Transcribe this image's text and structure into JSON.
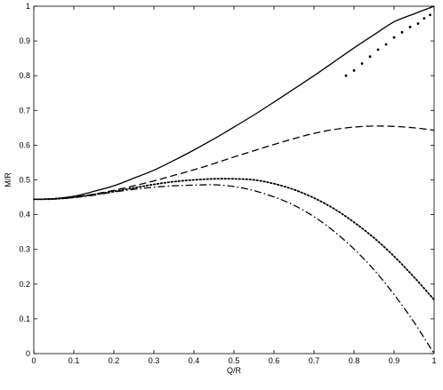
{
  "chart_data": {
    "type": "line",
    "title": "",
    "xlabel": "Q/R",
    "ylabel": "M/R",
    "xlim": [
      0,
      1
    ],
    "ylim": [
      0,
      1
    ],
    "grid": false,
    "legend": "none",
    "x_ticks": [
      "0",
      "0.1",
      "0.2",
      "0.3",
      "0.4",
      "0.5",
      "0.6",
      "0.7",
      "0.8",
      "0.9",
      "1"
    ],
    "y_ticks": [
      "0",
      "0.1",
      "0.2",
      "0.3",
      "0.4",
      "0.5",
      "0.6",
      "0.7",
      "0.8",
      "0.9",
      "1"
    ],
    "x": [
      0,
      0.05,
      0.1,
      0.15,
      0.2,
      0.25,
      0.3,
      0.35,
      0.4,
      0.45,
      0.5,
      0.55,
      0.6,
      0.65,
      0.7,
      0.75,
      0.8,
      0.85,
      0.9,
      0.95,
      1.0
    ],
    "series": [
      {
        "style": "solid",
        "color": "#000000",
        "values": [
          0.444,
          0.446,
          0.453,
          0.467,
          0.483,
          0.505,
          0.528,
          0.556,
          0.586,
          0.618,
          0.652,
          0.687,
          0.724,
          0.762,
          0.8,
          0.84,
          0.88,
          0.918,
          0.955,
          0.978,
          1.0
        ]
      },
      {
        "style": "dashed",
        "color": "#000000",
        "values": [
          0.444,
          0.446,
          0.451,
          0.459,
          0.47,
          0.483,
          0.497,
          0.513,
          0.529,
          0.547,
          0.566,
          0.584,
          0.602,
          0.619,
          0.634,
          0.645,
          0.652,
          0.655,
          0.654,
          0.65,
          0.643
        ]
      },
      {
        "style": "dotted",
        "color": "#000000",
        "values": [
          0.444,
          0.445,
          0.45,
          0.458,
          0.467,
          0.477,
          0.487,
          0.495,
          0.5,
          0.503,
          0.503,
          0.5,
          0.489,
          0.472,
          0.448,
          0.417,
          0.378,
          0.333,
          0.28,
          0.22,
          0.155
        ]
      },
      {
        "style": "dashdot",
        "color": "#000000",
        "values": [
          0.444,
          0.445,
          0.449,
          0.456,
          0.465,
          0.473,
          0.479,
          0.483,
          0.485,
          0.486,
          0.481,
          0.469,
          0.451,
          0.427,
          0.394,
          0.352,
          0.301,
          0.241,
          0.17,
          0.09,
          0.0
        ]
      }
    ],
    "markers": {
      "x": [
        0.78,
        0.8,
        0.82,
        0.84,
        0.86,
        0.88,
        0.9,
        0.92,
        0.94,
        0.96,
        0.975,
        0.99
      ],
      "y": [
        0.8,
        0.815,
        0.835,
        0.855,
        0.875,
        0.89,
        0.91,
        0.925,
        0.94,
        0.95,
        0.965,
        0.975
      ]
    }
  }
}
